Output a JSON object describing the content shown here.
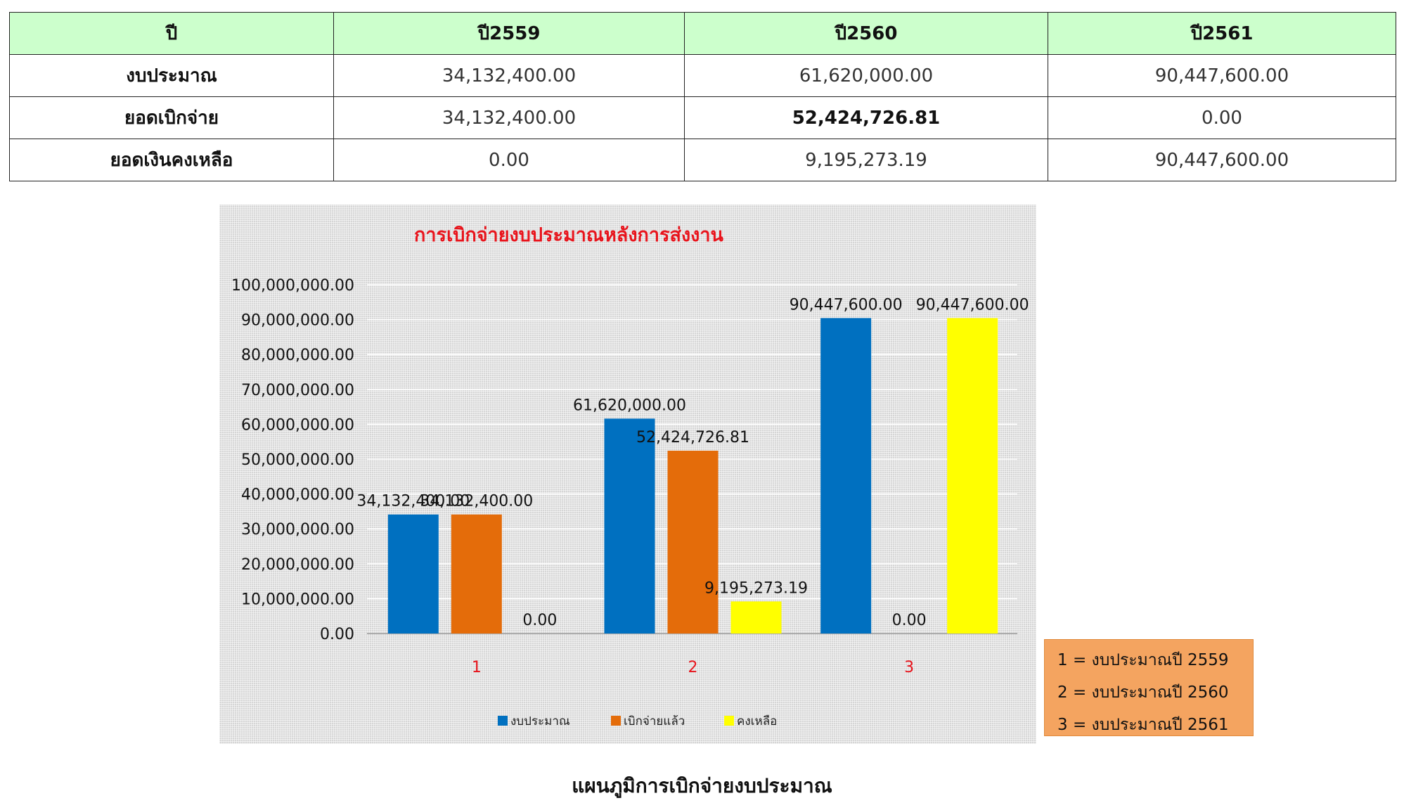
{
  "table": {
    "headers": [
      "ปี",
      "ปี2559",
      "ปี2560",
      "ปี2561"
    ],
    "rows": [
      {
        "label": "งบประมาณ",
        "values": [
          "34,132,400.00",
          "61,620,000.00",
          "90,447,600.00"
        ]
      },
      {
        "label": "ยอดเบิกจ่าย",
        "values": [
          "34,132,400.00",
          "52,424,726.81",
          "0.00"
        ]
      },
      {
        "label": "ยอดเงินคงเหลือ",
        "values": [
          "0.00",
          "9,195,273.19",
          "90,447,600.00"
        ]
      }
    ]
  },
  "chart_data": {
    "type": "bar",
    "title": "การเบิกจ่ายงบประมาณหลังการส่งงาน",
    "categories": [
      "1",
      "2",
      "3"
    ],
    "series": [
      {
        "name": "งบประมาณ",
        "color": "#0070c0",
        "values": [
          34132400.0,
          61620000.0,
          90447600.0
        ],
        "labels": [
          "34,132,400.00",
          "61,620,000.00",
          "90,447,600.00"
        ]
      },
      {
        "name": "เบิกจ่ายแล้ว",
        "color": "#e46c0a",
        "values": [
          34132400.0,
          52424726.81,
          0.0
        ],
        "labels": [
          "34,132,400.00",
          "52,424,726.81",
          "0.00"
        ]
      },
      {
        "name": "คงเหลือ",
        "color": "#ffff00",
        "values": [
          0.0,
          9195273.19,
          90447600.0
        ],
        "labels": [
          "0.00",
          "9,195,273.19",
          "90,447,600.00"
        ]
      }
    ],
    "yticks": [
      "0.00",
      "10,000,000.00",
      "20,000,000.00",
      "30,000,000.00",
      "40,000,000.00",
      "50,000,000.00",
      "60,000,000.00",
      "70,000,000.00",
      "80,000,000.00",
      "90,000,000.00",
      "100,000,000.00"
    ],
    "ylim": [
      0,
      100000000
    ],
    "grid": true,
    "legend_position": "bottom",
    "background": "#d6d6d6"
  },
  "key": {
    "lines": [
      "1 = งบประมาณปี 2559",
      "2 = งบประมาณปี 2560",
      "3 = งบประมาณปี 2561"
    ],
    "background": "#f4a460"
  },
  "caption": "แผนภูมิการเบิกจ่ายงบประมาณ"
}
